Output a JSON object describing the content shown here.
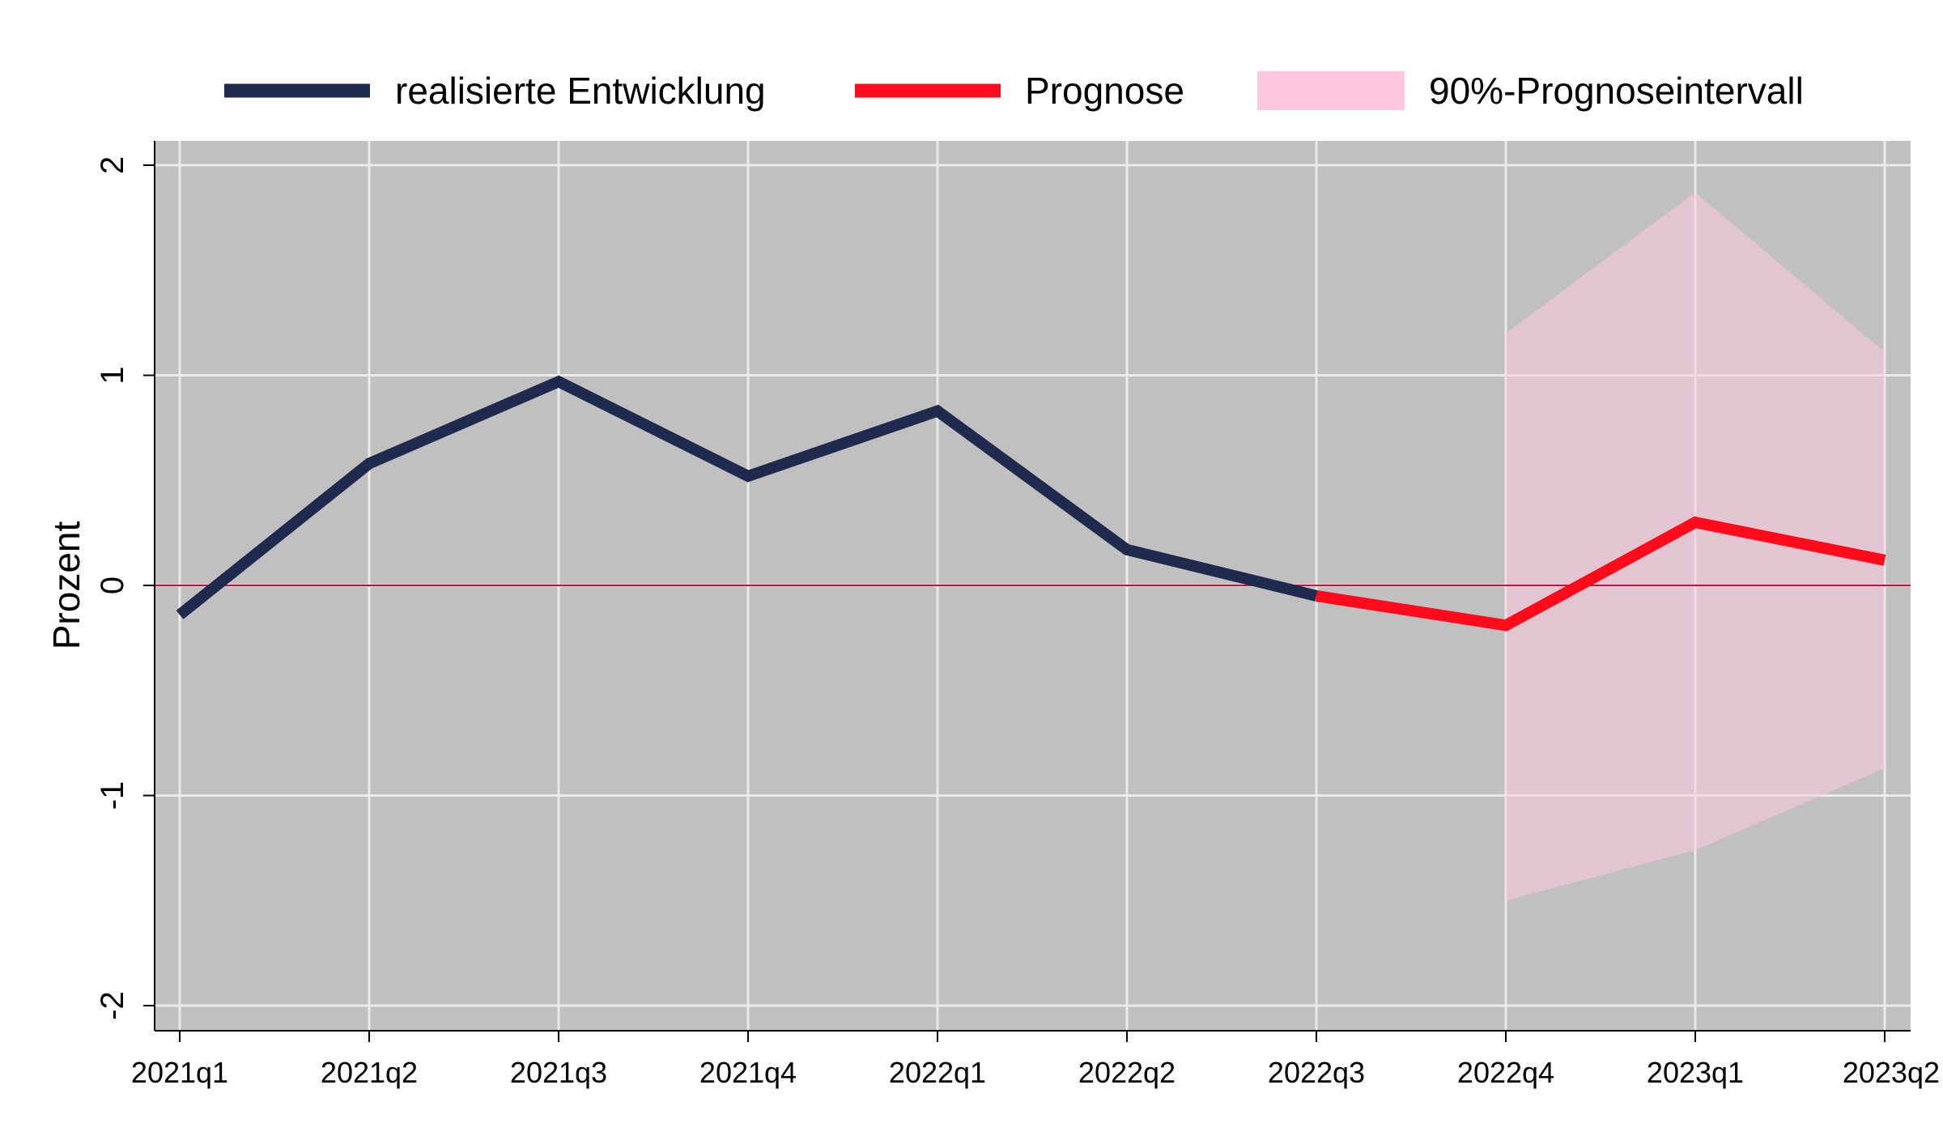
{
  "chart_data": {
    "type": "line",
    "ylabel": "Prozent",
    "xlabel": "",
    "ylim": [
      -2.15,
      2.1
    ],
    "yticks": [
      "-2",
      "-1",
      "0",
      "1",
      "2"
    ],
    "yticks_values": [
      -2,
      -1,
      0,
      1,
      2
    ],
    "categories": [
      "2021q1",
      "2021q2",
      "2021q3",
      "2021q4",
      "2022q1",
      "2022q2",
      "2022q3",
      "2022q4",
      "2023q1",
      "2023q2"
    ],
    "grid": true,
    "legend_position": "top",
    "reference_line": 0,
    "series": [
      {
        "name": "realisierte Entwicklung",
        "color": "#1f2a4e",
        "x": [
          "2021q1",
          "2021q2",
          "2021q3",
          "2021q4",
          "2022q1",
          "2022q2",
          "2022q3"
        ],
        "values": [
          -0.14,
          0.58,
          0.97,
          0.52,
          0.83,
          0.17,
          -0.05
        ]
      },
      {
        "name": "Prognose",
        "color": "#ff0a1a",
        "x": [
          "2022q3",
          "2022q4",
          "2023q1",
          "2023q2"
        ],
        "values": [
          -0.05,
          -0.19,
          0.3,
          0.12
        ]
      }
    ],
    "band": {
      "name": "90%-Prognoseintervall",
      "color": "#ffc8e0",
      "x": [
        "2022q4",
        "2023q1",
        "2023q2"
      ],
      "upper": [
        1.2,
        1.87,
        1.11
      ],
      "lower": [
        -1.5,
        -1.26,
        -0.87
      ]
    }
  }
}
